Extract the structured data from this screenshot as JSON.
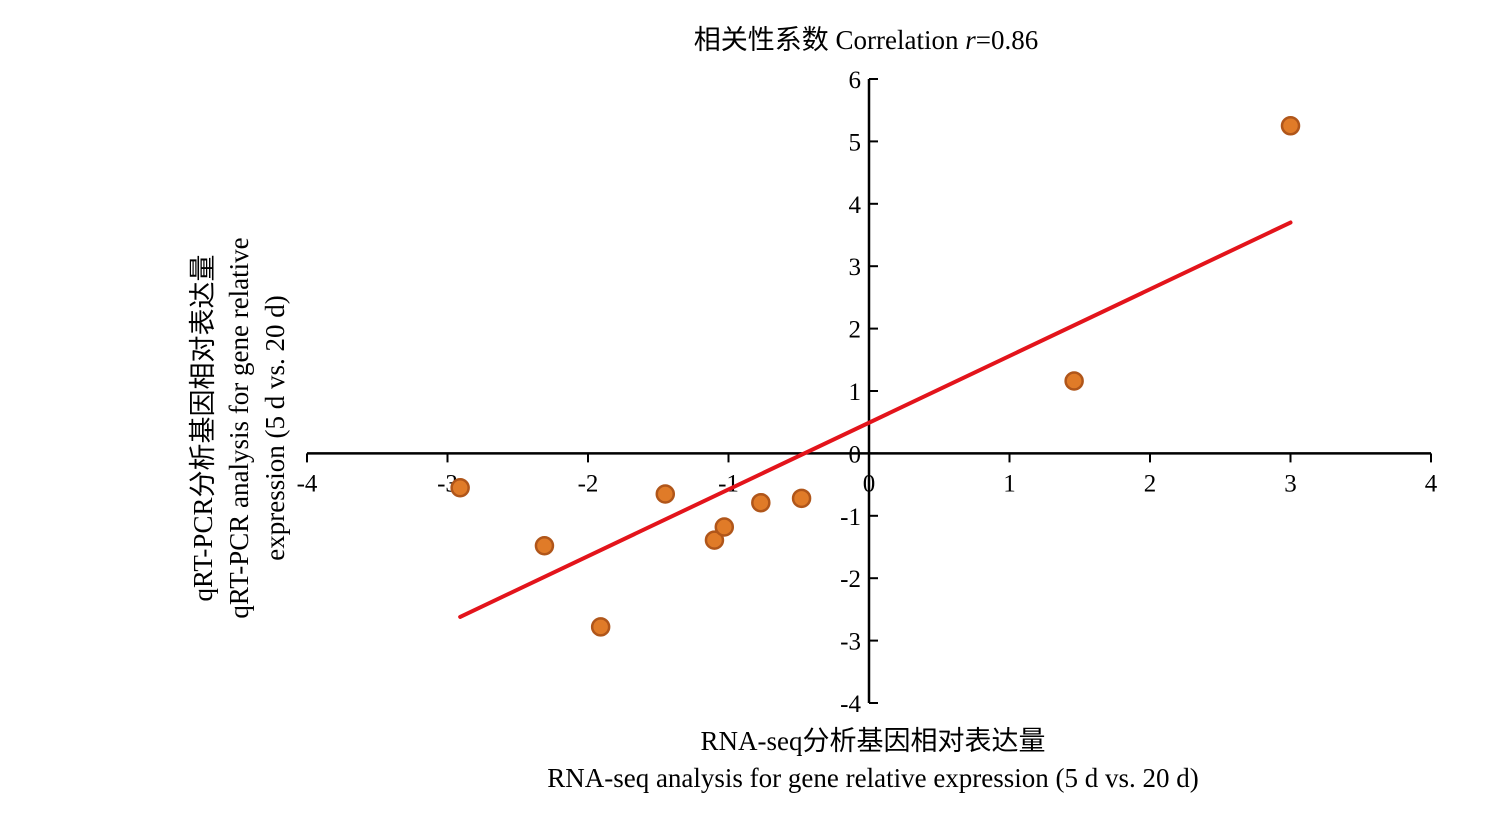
{
  "chart_data": {
    "type": "scatter",
    "title_prefix": "相关性系数 Correlation ",
    "title_r": "r",
    "title_suffix": "=0.86",
    "xlabel_cn": "RNA-seq分析基因相对表达量",
    "xlabel_en": "RNA-seq analysis for gene relative expression (5 d vs. 20 d)",
    "ylabel_lines": [
      "qRT-PCR分析基因相对表达量",
      "qRT-PCR analysis for gene relative",
      "expression (5 d vs. 20 d)"
    ],
    "xlim": [
      -4,
      4
    ],
    "ylim": [
      -4,
      6
    ],
    "xticks": [
      -4,
      -3,
      -2,
      -1,
      0,
      1,
      2,
      3,
      4
    ],
    "yticks": [
      -4,
      -3,
      -2,
      -1,
      0,
      1,
      2,
      3,
      4,
      5,
      6
    ],
    "x_tick_labels": [
      "-4",
      "-3",
      "-2",
      "-1",
      "0",
      "1",
      "2",
      "3",
      "4"
    ],
    "y_tick_labels": [
      "-4",
      "-3",
      "-2",
      "-1",
      "0",
      "1",
      "2",
      "3",
      "4",
      "5",
      "6"
    ],
    "points": [
      {
        "x": -2.91,
        "y": -0.55
      },
      {
        "x": -2.31,
        "y": -1.48
      },
      {
        "x": -1.91,
        "y": -2.78
      },
      {
        "x": -1.45,
        "y": -0.65
      },
      {
        "x": -1.1,
        "y": -1.39
      },
      {
        "x": -1.03,
        "y": -1.18
      },
      {
        "x": -0.77,
        "y": -0.79
      },
      {
        "x": -0.48,
        "y": -0.72
      },
      {
        "x": 1.46,
        "y": 1.16
      },
      {
        "x": 3.0,
        "y": 5.25
      }
    ],
    "trendline": {
      "x1": -2.91,
      "y1": -2.62,
      "x2": 3.0,
      "y2": 3.7
    },
    "grid": false,
    "legend": "none",
    "colors": {
      "point_fill": "#e07b28",
      "point_stroke": "#b0561a",
      "trendline": "#e3141b",
      "axis": "#000000"
    }
  }
}
